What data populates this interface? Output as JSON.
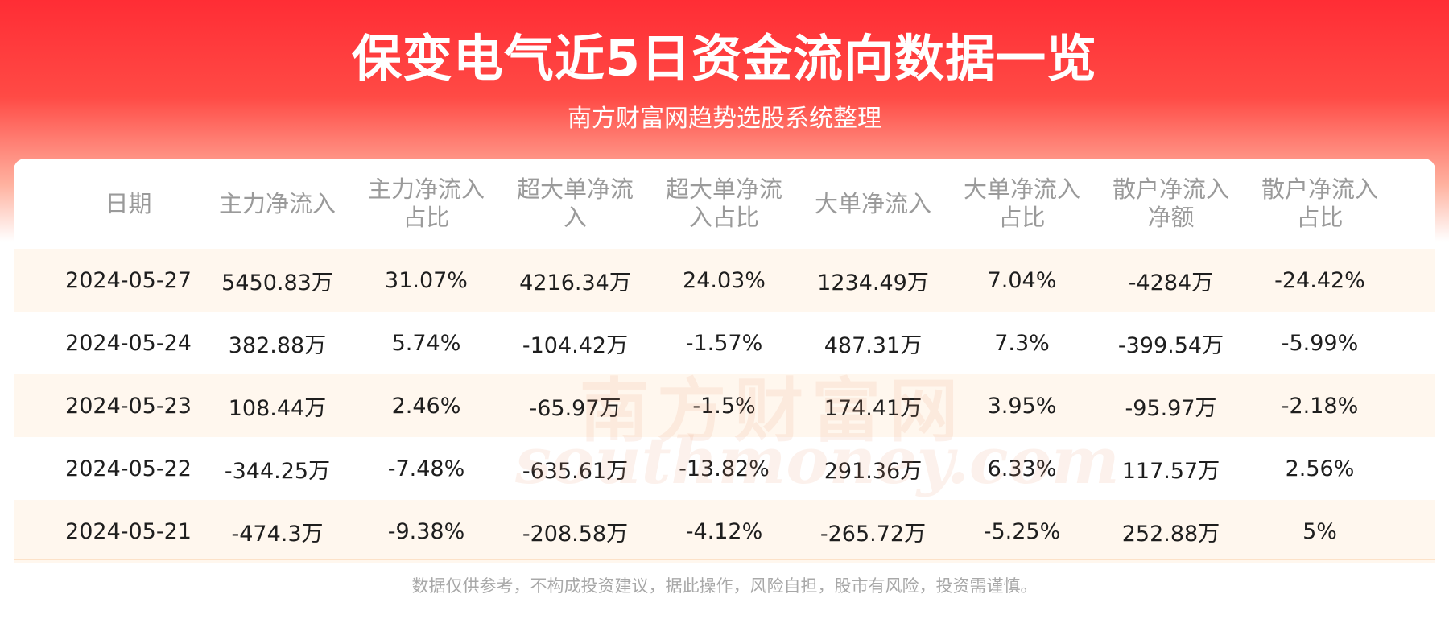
{
  "header": {
    "title": "保变电气近5日资金流向数据一览",
    "subtitle": "南方财富网趋势选股系统整理"
  },
  "watermark": [
    "南方财富网",
    "southmoney.com"
  ],
  "table": {
    "columns": [
      "日期",
      "主力净流入",
      "主力净流入占比",
      "超大单净流入",
      "超大单净流入占比",
      "大单净流入",
      "大单净流入占比",
      "散户净流入净额",
      "散户净流入占比"
    ],
    "rows": [
      [
        "2024-05-27",
        "5450.83万",
        "31.07%",
        "4216.34万",
        "24.03%",
        "1234.49万",
        "7.04%",
        "-4284万",
        "-24.42%"
      ],
      [
        "2024-05-24",
        "382.88万",
        "5.74%",
        "-104.42万",
        "-1.57%",
        "487.31万",
        "7.3%",
        "-399.54万",
        "-5.99%"
      ],
      [
        "2024-05-23",
        "108.44万",
        "2.46%",
        "-65.97万",
        "-1.5%",
        "174.41万",
        "3.95%",
        "-95.97万",
        "-2.18%"
      ],
      [
        "2024-05-22",
        "-344.25万",
        "-7.48%",
        "-635.61万",
        "-13.82%",
        "291.36万",
        "6.33%",
        "117.57万",
        "2.56%"
      ],
      [
        "2024-05-21",
        "-474.3万",
        "-9.38%",
        "-208.58万",
        "-4.12%",
        "-265.72万",
        "-5.25%",
        "252.88万",
        "5%"
      ]
    ]
  },
  "footer": {
    "disclaimer": "数据仅供参考，不构成投资建议，据此操作，风险自担，股市有风险，投资需谨慎。"
  }
}
